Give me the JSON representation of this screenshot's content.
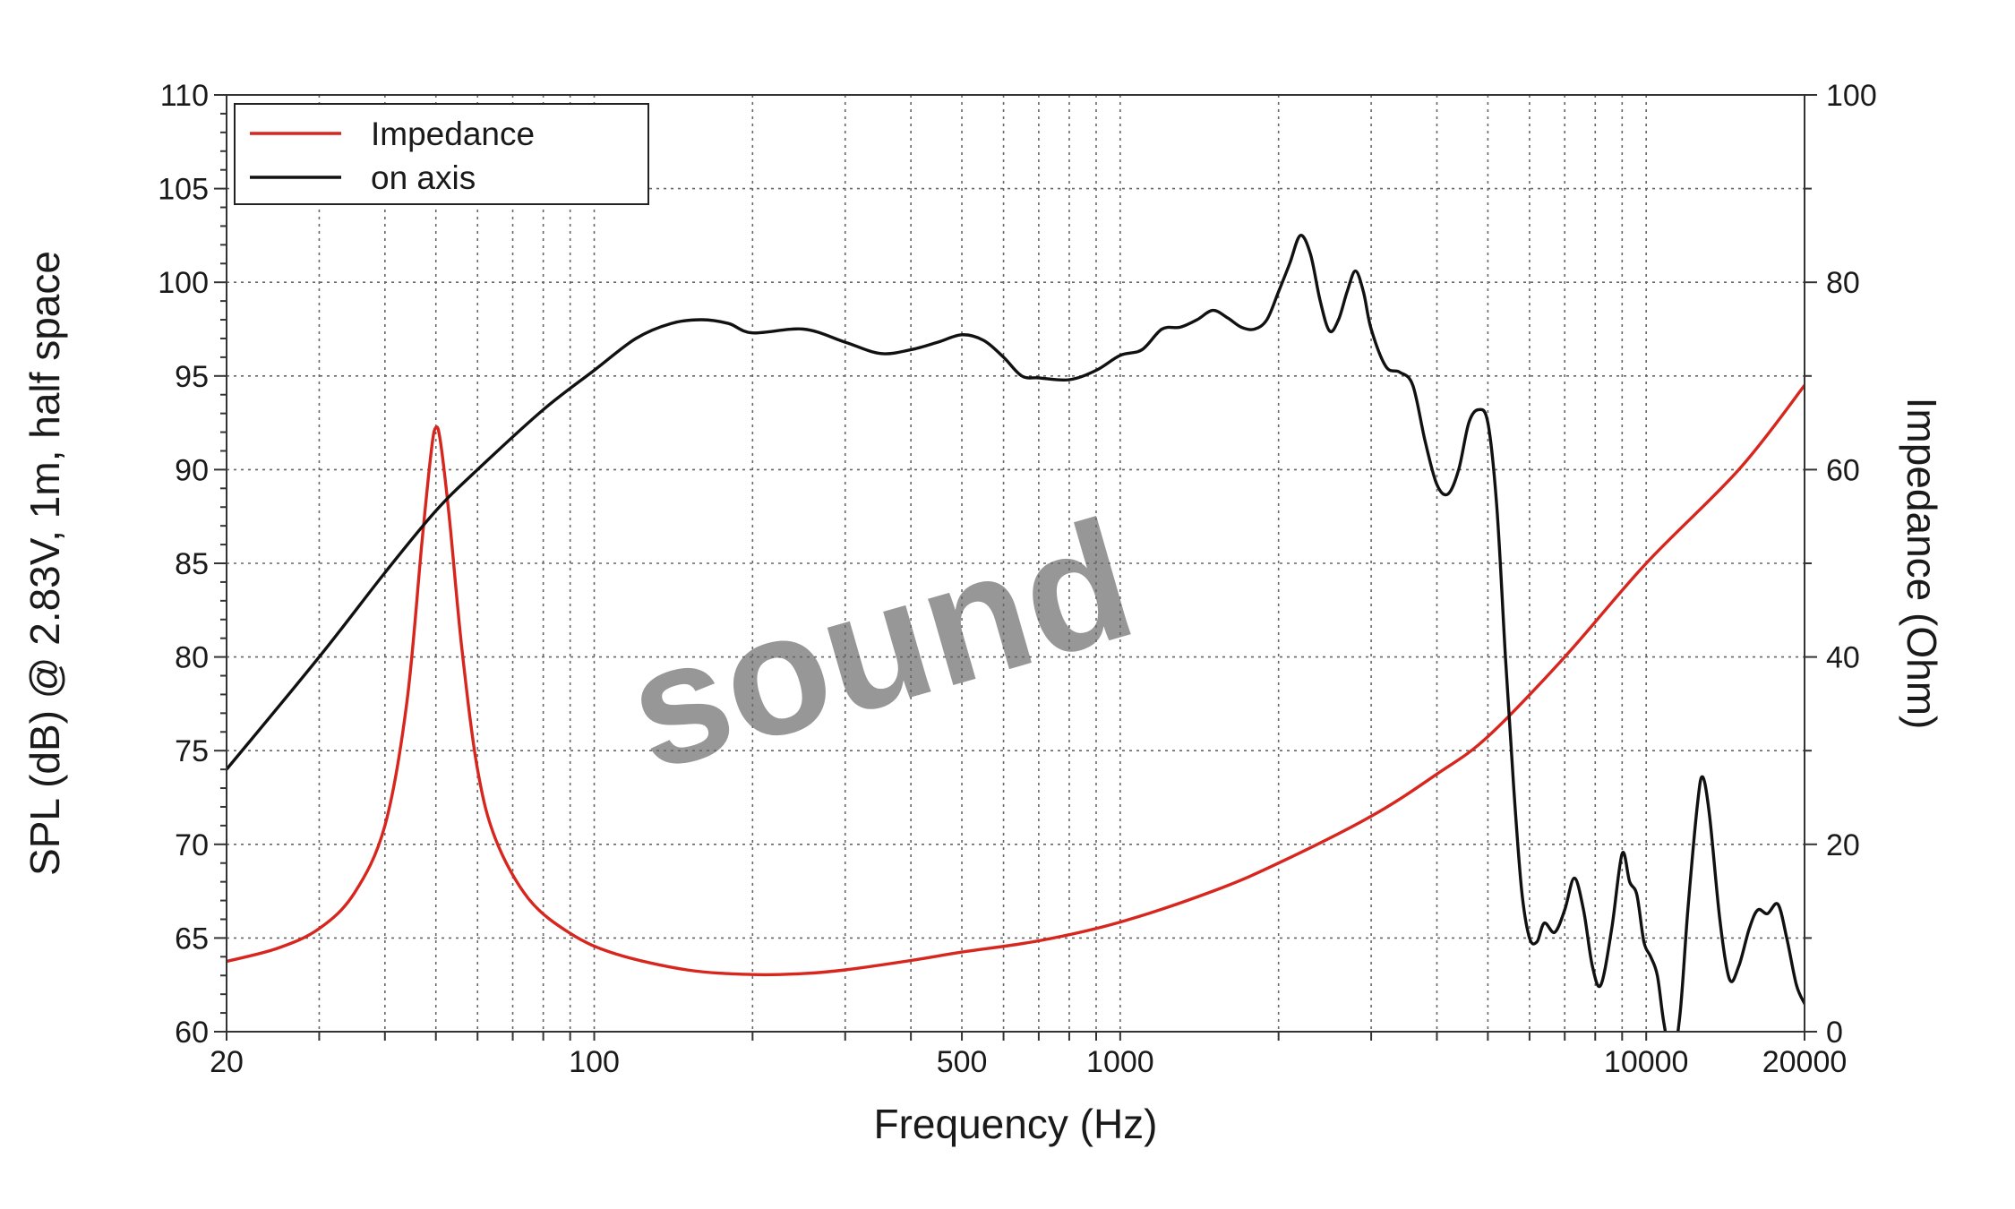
{
  "chart_data": {
    "type": "line",
    "title": "",
    "xlabel": "Frequency (Hz)",
    "ylabel": "SPL (dB) @ 2.83V, 1m, half space",
    "y2label": "Impedance (Ohm)",
    "x_scale": "log",
    "xlim": [
      20,
      20000
    ],
    "ylim": [
      60,
      110
    ],
    "y2lim": [
      0,
      100
    ],
    "x_ticks": [
      20,
      100,
      500,
      1000,
      10000,
      20000
    ],
    "x_tick_labels": [
      "20",
      "100",
      "500",
      "1000",
      "10000",
      "20000"
    ],
    "y_ticks": [
      60,
      65,
      70,
      75,
      80,
      85,
      90,
      95,
      100,
      105,
      110
    ],
    "y_tick_labels": [
      "60",
      "65",
      "70",
      "75",
      "80",
      "85",
      "90",
      "95",
      "100",
      "105",
      "110"
    ],
    "y2_ticks": [
      0,
      20,
      40,
      60,
      80,
      100
    ],
    "y2_tick_labels": [
      "0",
      "20",
      "40",
      "60",
      "80",
      "100"
    ],
    "grid": true,
    "legend_position": "top-left",
    "watermark": "sound",
    "series": [
      {
        "name": "Impedance",
        "axis": "right",
        "color": "#d7261e",
        "points": [
          [
            20,
            7.5
          ],
          [
            25,
            8.9
          ],
          [
            30,
            11
          ],
          [
            35,
            14.8
          ],
          [
            40,
            22
          ],
          [
            44,
            35
          ],
          [
            47,
            52
          ],
          [
            49,
            62
          ],
          [
            50,
            64.5
          ],
          [
            51,
            63
          ],
          [
            53,
            55
          ],
          [
            56,
            41
          ],
          [
            60,
            28
          ],
          [
            65,
            20.5
          ],
          [
            75,
            14.2
          ],
          [
            90,
            10.5
          ],
          [
            110,
            8.3
          ],
          [
            150,
            6.6
          ],
          [
            200,
            6.1
          ],
          [
            250,
            6.2
          ],
          [
            300,
            6.6
          ],
          [
            400,
            7.6
          ],
          [
            500,
            8.5
          ],
          [
            700,
            9.7
          ],
          [
            1000,
            11.7
          ],
          [
            1500,
            15
          ],
          [
            2000,
            18
          ],
          [
            3000,
            23
          ],
          [
            4000,
            27.5
          ],
          [
            5000,
            31.5
          ],
          [
            7000,
            40
          ],
          [
            10000,
            50
          ],
          [
            15000,
            60
          ],
          [
            20000,
            69
          ]
        ]
      },
      {
        "name": "on axis",
        "axis": "left",
        "color": "#111111",
        "points": [
          [
            20,
            74
          ],
          [
            30,
            80
          ],
          [
            40,
            84.5
          ],
          [
            50,
            87.8
          ],
          [
            60,
            90
          ],
          [
            80,
            93.2
          ],
          [
            100,
            95.3
          ],
          [
            120,
            97
          ],
          [
            140,
            97.8
          ],
          [
            160,
            98
          ],
          [
            180,
            97.8
          ],
          [
            200,
            97.3
          ],
          [
            250,
            97.5
          ],
          [
            300,
            96.8
          ],
          [
            350,
            96.2
          ],
          [
            400,
            96.4
          ],
          [
            450,
            96.8
          ],
          [
            500,
            97.2
          ],
          [
            550,
            96.9
          ],
          [
            600,
            96
          ],
          [
            650,
            95
          ],
          [
            700,
            94.9
          ],
          [
            800,
            94.8
          ],
          [
            900,
            95.3
          ],
          [
            1000,
            96.1
          ],
          [
            1100,
            96.4
          ],
          [
            1200,
            97.5
          ],
          [
            1300,
            97.6
          ],
          [
            1400,
            98
          ],
          [
            1500,
            98.5
          ],
          [
            1600,
            98.1
          ],
          [
            1700,
            97.6
          ],
          [
            1800,
            97.5
          ],
          [
            1900,
            98
          ],
          [
            2000,
            99.5
          ],
          [
            2100,
            101
          ],
          [
            2200,
            102.5
          ],
          [
            2300,
            101.5
          ],
          [
            2400,
            99
          ],
          [
            2500,
            97.4
          ],
          [
            2600,
            98
          ],
          [
            2700,
            99.5
          ],
          [
            2800,
            100.6
          ],
          [
            2900,
            99.5
          ],
          [
            3000,
            97.5
          ],
          [
            3200,
            95.5
          ],
          [
            3400,
            95.2
          ],
          [
            3600,
            94.5
          ],
          [
            3800,
            91.5
          ],
          [
            4000,
            89.2
          ],
          [
            4200,
            88.7
          ],
          [
            4400,
            90
          ],
          [
            4600,
            92.5
          ],
          [
            4800,
            93.2
          ],
          [
            5000,
            92.5
          ],
          [
            5200,
            88
          ],
          [
            5400,
            80
          ],
          [
            5600,
            73
          ],
          [
            5800,
            67.5
          ],
          [
            6000,
            65
          ],
          [
            6200,
            64.8
          ],
          [
            6400,
            65.8
          ],
          [
            6700,
            65.3
          ],
          [
            7000,
            66.5
          ],
          [
            7300,
            68.2
          ],
          [
            7600,
            66.5
          ],
          [
            7900,
            63.5
          ],
          [
            8200,
            62.5
          ],
          [
            8600,
            65.5
          ],
          [
            9000,
            69.5
          ],
          [
            9300,
            68
          ],
          [
            9600,
            67.3
          ],
          [
            9900,
            64.8
          ],
          [
            10200,
            64
          ],
          [
            10500,
            63
          ],
          [
            10800,
            60.5
          ],
          [
            11200,
            58.5
          ],
          [
            11600,
            61
          ],
          [
            12000,
            66.5
          ],
          [
            12500,
            72
          ],
          [
            12800,
            73.6
          ],
          [
            13200,
            71.5
          ],
          [
            13800,
            66
          ],
          [
            14400,
            62.8
          ],
          [
            15000,
            63.5
          ],
          [
            15700,
            65.5
          ],
          [
            16300,
            66.5
          ],
          [
            17000,
            66.3
          ],
          [
            17800,
            66.8
          ],
          [
            18500,
            65
          ],
          [
            19300,
            62.5
          ],
          [
            20000,
            61.5
          ]
        ]
      }
    ]
  }
}
